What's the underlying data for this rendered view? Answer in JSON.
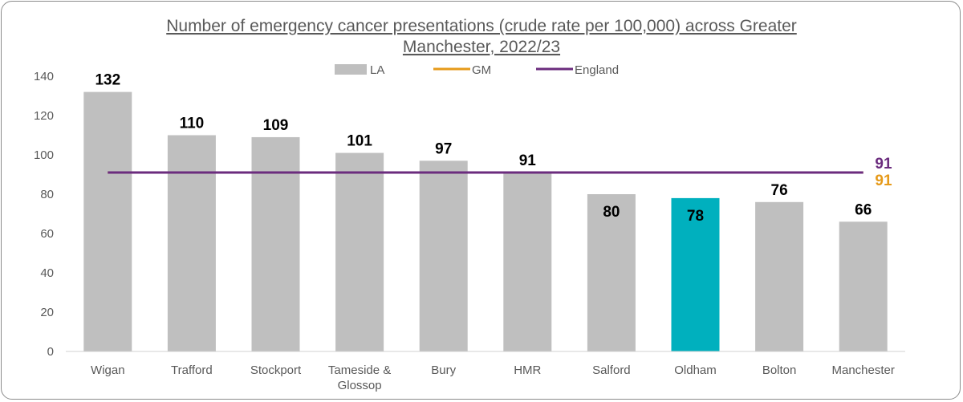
{
  "chart_data": {
    "type": "bar",
    "title_lines": [
      "Number of emergency cancer presentations (crude rate per 100,000) across Greater",
      "Manchester, 2022/23"
    ],
    "categories": [
      "Wigan",
      "Trafford",
      "Stockport",
      "Tameside & Glossop",
      "Bury",
      "HMR",
      "Salford",
      "Oldham",
      "Bolton",
      "Manchester"
    ],
    "category_lines": [
      [
        "Wigan"
      ],
      [
        "Trafford"
      ],
      [
        "Stockport"
      ],
      [
        "Tameside &",
        "Glossop"
      ],
      [
        "Bury"
      ],
      [
        "HMR"
      ],
      [
        "Salford"
      ],
      [
        "Oldham"
      ],
      [
        "Bolton"
      ],
      [
        "Manchester"
      ]
    ],
    "values": [
      132,
      110,
      109,
      101,
      97,
      91,
      80,
      78,
      76,
      66
    ],
    "value_labels": [
      "132",
      "110",
      "109",
      "101",
      "97",
      "91",
      "80",
      "78",
      "76",
      "66"
    ],
    "highlight_index": 7,
    "reference_lines": [
      {
        "name": "GM",
        "value": 91,
        "label": "91",
        "color": "#E69A1A"
      },
      {
        "name": "England",
        "value": 91,
        "label": "91",
        "color": "#6B2C7E"
      }
    ],
    "legend": [
      {
        "name": "LA",
        "color": "#BFBFBF",
        "kind": "bar"
      },
      {
        "name": "GM",
        "color": "#E69A1A",
        "kind": "line"
      },
      {
        "name": "England",
        "color": "#6B2C7E",
        "kind": "line"
      }
    ],
    "bar_color": "#BFBFBF",
    "highlight_color": "#00B0BE",
    "ylim": [
      0,
      140
    ],
    "yticks": [
      0,
      20,
      40,
      60,
      80,
      100,
      120,
      140
    ],
    "ytick_labels": [
      "0",
      "20",
      "40",
      "60",
      "80",
      "100",
      "120",
      "140"
    ],
    "xlabel": "",
    "ylabel": "",
    "grid": false,
    "legend_position": "top"
  }
}
